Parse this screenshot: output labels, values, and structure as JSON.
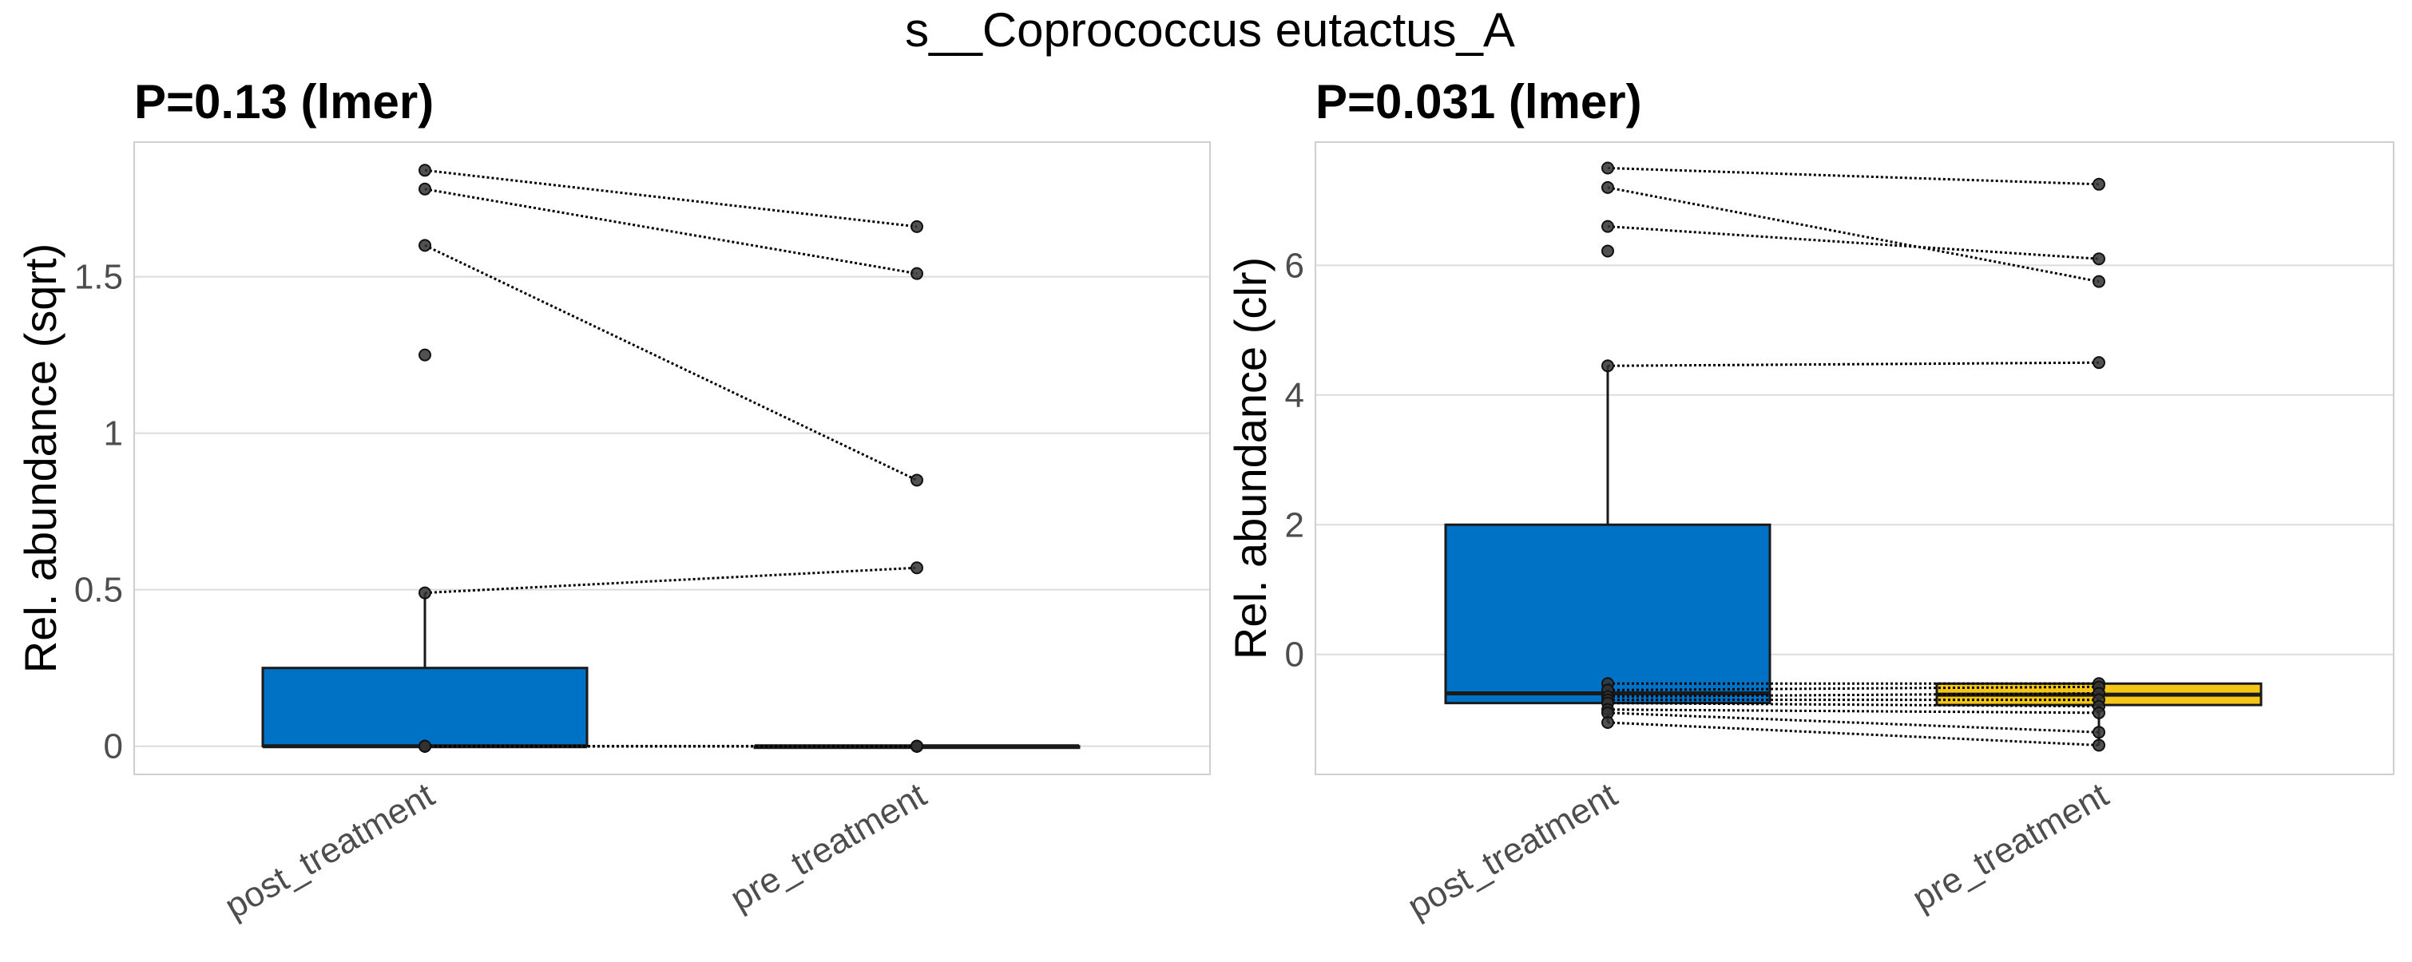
{
  "suptitle": "s__Coprococcus eutactus_A",
  "colors": {
    "post_treatment": "#0072C6",
    "pre_treatment": "#F5C518",
    "points": "#333333",
    "grid": "#dcdcdc"
  },
  "chart_data": [
    {
      "type": "box",
      "title": "P=0.13 (lmer)",
      "ylabel": "Rel. abundance (sqrt)",
      "xlabel": "",
      "ylim": [
        -0.09,
        1.93
      ],
      "yticks": [
        0,
        0.5,
        1,
        1.5
      ],
      "ytick_labels": [
        "0",
        "0.5",
        "1",
        "1.5"
      ],
      "categories": [
        "post_treatment",
        "pre_treatment"
      ],
      "boxes": [
        {
          "group": "post_treatment",
          "q1": 0,
          "median": 0,
          "q3": 0.25,
          "whisker_low": 0,
          "whisker_high": 0.49
        },
        {
          "group": "pre_treatment",
          "q1": 0,
          "median": 0,
          "q3": 0,
          "whisker_low": 0,
          "whisker_high": 0
        }
      ],
      "pairs": [
        [
          1.84,
          1.66
        ],
        [
          1.78,
          1.51
        ],
        [
          1.6,
          0.85
        ],
        [
          0.49,
          0.57
        ],
        [
          0,
          0
        ],
        [
          0,
          0
        ],
        [
          0,
          0
        ],
        [
          0,
          0
        ],
        [
          0,
          0
        ],
        [
          0,
          0
        ]
      ],
      "unpaired": [
        {
          "group": "post_treatment",
          "y": 1.25
        }
      ]
    },
    {
      "type": "box",
      "title": "P=0.031 (lmer)",
      "ylabel": "Rel. abundance (clr)",
      "xlabel": "",
      "ylim": [
        -1.85,
        7.9
      ],
      "yticks": [
        0,
        2,
        4,
        6
      ],
      "ytick_labels": [
        "0",
        "2",
        "4",
        "6"
      ],
      "categories": [
        "post_treatment",
        "pre_treatment"
      ],
      "boxes": [
        {
          "group": "post_treatment",
          "q1": -0.75,
          "median": -0.6,
          "q3": 2.0,
          "whisker_low": -1.05,
          "whisker_high": 4.45
        },
        {
          "group": "pre_treatment",
          "q1": -0.78,
          "median": -0.62,
          "q3": -0.45,
          "whisker_low": -1.4,
          "whisker_high": -0.45
        }
      ],
      "pairs": [
        [
          7.5,
          7.25
        ],
        [
          7.2,
          5.75
        ],
        [
          6.6,
          6.1
        ],
        [
          4.45,
          4.5
        ],
        [
          -0.45,
          -0.45
        ],
        [
          -0.55,
          -0.5
        ],
        [
          -0.65,
          -0.6
        ],
        [
          -0.7,
          -0.7
        ],
        [
          -0.75,
          -0.8
        ],
        [
          -0.85,
          -0.9
        ],
        [
          -0.9,
          -1.2
        ],
        [
          -1.05,
          -1.4
        ]
      ],
      "unpaired": [
        {
          "group": "post_treatment",
          "y": 6.22
        }
      ]
    }
  ]
}
